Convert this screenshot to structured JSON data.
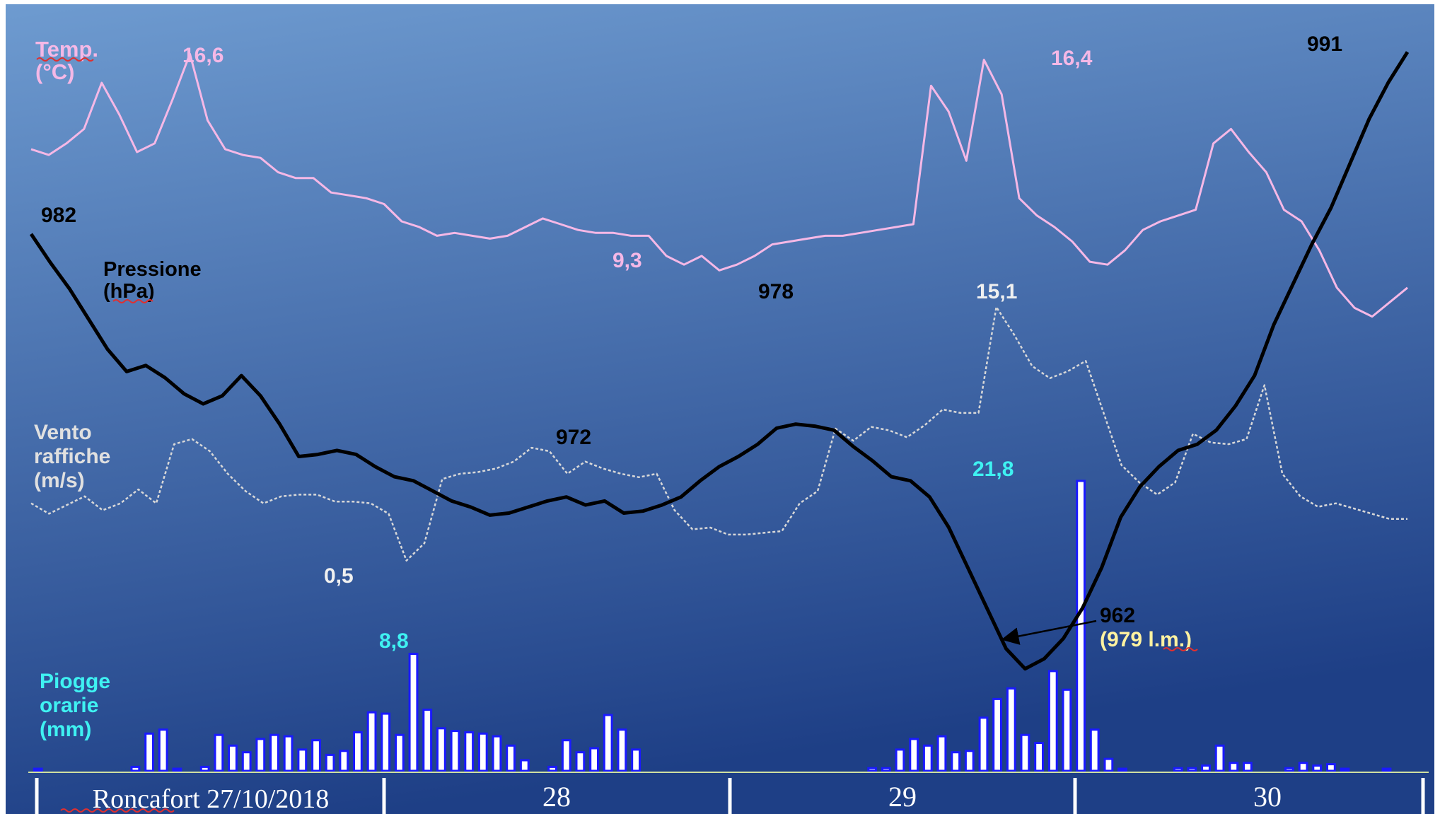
{
  "chart_data": {
    "type": "line",
    "location_date": "Roncafort 27/10/2018",
    "days": [
      "Roncafort 27/10/2018",
      "28",
      "29",
      "30"
    ],
    "colors": {
      "temperature": "#f5b8e6",
      "pressure": "#000000",
      "wind": "#d8d8d8",
      "rain": "#1a1aff",
      "rain_label": "#3ff2f2",
      "lm_label": "#fff2a0",
      "bg_top": "#6e9bd0",
      "bg_bottom": "#1e3f86"
    },
    "axis_labels": {
      "temperature": [
        "Temp.",
        "(°C)"
      ],
      "pressure": [
        "Pressione",
        "(hPa)"
      ],
      "wind": [
        "Vento",
        "raffiche",
        "(m/s)"
      ],
      "rain": [
        "Piogge",
        "orarie",
        "(mm)"
      ]
    },
    "annotations": {
      "temp_max1": "16,6",
      "temp_min": "9,3",
      "temp_max2": "16,4",
      "pres_start": "982",
      "pres_low1": "972",
      "pres_high": "978",
      "pres_min": "962",
      "pres_min_lm": "(979 l.m.)",
      "pres_end": "991",
      "wind_min": "0,5",
      "wind_max": "15,1",
      "rain_max1": "8,8",
      "rain_max2": "21,8"
    },
    "hours_total": 96,
    "series": [
      {
        "name": "Temp.",
        "unit": "°C",
        "points": [
          [
            0,
            13.3
          ],
          [
            2,
            13.1
          ],
          [
            4,
            13.5
          ],
          [
            6,
            14.0
          ],
          [
            8,
            15.6
          ],
          [
            10,
            14.5
          ],
          [
            12,
            13.2
          ],
          [
            14,
            13.5
          ],
          [
            16,
            15.0
          ],
          [
            18,
            16.6
          ],
          [
            20,
            14.3
          ],
          [
            22,
            13.3
          ],
          [
            24,
            13.1
          ],
          [
            26,
            13.0
          ],
          [
            28,
            12.5
          ],
          [
            30,
            12.3
          ],
          [
            32,
            12.3
          ],
          [
            34,
            11.8
          ],
          [
            36,
            11.7
          ],
          [
            38,
            11.6
          ],
          [
            40,
            11.4
          ],
          [
            42,
            10.8
          ],
          [
            44,
            10.6
          ],
          [
            46,
            10.3
          ],
          [
            48,
            10.4
          ],
          [
            50,
            10.3
          ],
          [
            52,
            10.2
          ],
          [
            54,
            10.3
          ],
          [
            56,
            10.6
          ],
          [
            58,
            10.9
          ],
          [
            60,
            10.7
          ],
          [
            62,
            10.5
          ],
          [
            64,
            10.4
          ],
          [
            66,
            10.4
          ],
          [
            68,
            10.3
          ],
          [
            70,
            10.3
          ],
          [
            72,
            9.6
          ],
          [
            74,
            9.3
          ],
          [
            76,
            9.6
          ],
          [
            78,
            9.1
          ],
          [
            80,
            9.3
          ],
          [
            82,
            9.6
          ],
          [
            84,
            10.0
          ],
          [
            86,
            10.1
          ],
          [
            88,
            10.2
          ],
          [
            90,
            10.3
          ],
          [
            92,
            10.3
          ],
          [
            94,
            10.4
          ],
          [
            96,
            10.5
          ],
          [
            98,
            10.6
          ],
          [
            100,
            10.7
          ],
          [
            102,
            15.5
          ],
          [
            104,
            14.6
          ],
          [
            106,
            12.9
          ],
          [
            108,
            16.4
          ],
          [
            110,
            15.2
          ],
          [
            112,
            11.6
          ],
          [
            114,
            11.0
          ],
          [
            116,
            10.6
          ],
          [
            118,
            10.1
          ],
          [
            120,
            9.4
          ],
          [
            122,
            9.3
          ],
          [
            124,
            9.8
          ],
          [
            126,
            10.5
          ],
          [
            128,
            10.8
          ],
          [
            130,
            11.0
          ],
          [
            132,
            11.2
          ],
          [
            134,
            13.5
          ],
          [
            136,
            14.0
          ],
          [
            138,
            13.2
          ],
          [
            140,
            12.5
          ],
          [
            142,
            11.2
          ],
          [
            144,
            10.8
          ],
          [
            146,
            9.8
          ],
          [
            148,
            8.5
          ],
          [
            150,
            7.8
          ],
          [
            152,
            7.5
          ],
          [
            154,
            8.0
          ],
          [
            156,
            8.5
          ]
        ]
      },
      {
        "name": "Pressione",
        "unit": "hPa",
        "points": [
          [
            0,
            982
          ],
          [
            2,
            980.6
          ],
          [
            4,
            979.3
          ],
          [
            6,
            977.8
          ],
          [
            8,
            976.3
          ],
          [
            10,
            975.2
          ],
          [
            12,
            975.5
          ],
          [
            14,
            974.9
          ],
          [
            16,
            974.1
          ],
          [
            18,
            973.6
          ],
          [
            20,
            974.0
          ],
          [
            22,
            975.0
          ],
          [
            24,
            974.0
          ],
          [
            26,
            972.6
          ],
          [
            28,
            971.0
          ],
          [
            30,
            971.1
          ],
          [
            32,
            971.3
          ],
          [
            34,
            971.1
          ],
          [
            36,
            970.5
          ],
          [
            38,
            970.0
          ],
          [
            40,
            969.8
          ],
          [
            42,
            969.3
          ],
          [
            44,
            968.8
          ],
          [
            46,
            968.5
          ],
          [
            48,
            968.1
          ],
          [
            50,
            968.2
          ],
          [
            52,
            968.5
          ],
          [
            54,
            968.8
          ],
          [
            56,
            969.0
          ],
          [
            58,
            968.6
          ],
          [
            60,
            968.8
          ],
          [
            62,
            968.2
          ],
          [
            64,
            968.3
          ],
          [
            66,
            968.6
          ],
          [
            68,
            969.0
          ],
          [
            70,
            969.8
          ],
          [
            72,
            970.5
          ],
          [
            74,
            971.0
          ],
          [
            76,
            971.6
          ],
          [
            78,
            972.4
          ],
          [
            80,
            972.6
          ],
          [
            82,
            972.5
          ],
          [
            84,
            972.3
          ],
          [
            86,
            971.5
          ],
          [
            88,
            970.8
          ],
          [
            90,
            970.0
          ],
          [
            92,
            969.8
          ],
          [
            94,
            969.0
          ],
          [
            96,
            967.5
          ],
          [
            98,
            965.5
          ],
          [
            100,
            963.5
          ],
          [
            102,
            961.5
          ],
          [
            104,
            960.5
          ],
          [
            106,
            961.0
          ],
          [
            108,
            962.0
          ],
          [
            110,
            963.5
          ],
          [
            112,
            965.5
          ],
          [
            114,
            968.0
          ],
          [
            116,
            969.5
          ],
          [
            118,
            970.5
          ],
          [
            120,
            971.3
          ],
          [
            122,
            971.6
          ],
          [
            124,
            972.3
          ],
          [
            126,
            973.5
          ],
          [
            128,
            975.0
          ],
          [
            130,
            977.5
          ],
          [
            132,
            979.5
          ],
          [
            134,
            981.5
          ],
          [
            136,
            983.3
          ],
          [
            138,
            985.5
          ],
          [
            140,
            987.7
          ],
          [
            142,
            989.5
          ],
          [
            144,
            991
          ]
        ]
      },
      {
        "name": "Vento raffiche",
        "unit": "m/s",
        "points": [
          [
            0,
            3.8
          ],
          [
            2,
            3.2
          ],
          [
            4,
            3.7
          ],
          [
            6,
            4.2
          ],
          [
            8,
            3.4
          ],
          [
            10,
            3.8
          ],
          [
            12,
            4.6
          ],
          [
            14,
            3.8
          ],
          [
            16,
            7.2
          ],
          [
            18,
            7.5
          ],
          [
            20,
            6.8
          ],
          [
            22,
            5.5
          ],
          [
            24,
            4.5
          ],
          [
            26,
            3.8
          ],
          [
            28,
            4.2
          ],
          [
            30,
            4.3
          ],
          [
            32,
            4.3
          ],
          [
            34,
            3.9
          ],
          [
            36,
            3.9
          ],
          [
            38,
            3.8
          ],
          [
            40,
            3.2
          ],
          [
            42,
            0.5
          ],
          [
            44,
            1.5
          ],
          [
            46,
            5.2
          ],
          [
            48,
            5.5
          ],
          [
            50,
            5.6
          ],
          [
            52,
            5.8
          ],
          [
            54,
            6.2
          ],
          [
            56,
            7.0
          ],
          [
            58,
            6.8
          ],
          [
            60,
            5.5
          ],
          [
            62,
            6.2
          ],
          [
            64,
            5.8
          ],
          [
            66,
            5.5
          ],
          [
            68,
            5.3
          ],
          [
            70,
            5.5
          ],
          [
            72,
            3.4
          ],
          [
            74,
            2.3
          ],
          [
            76,
            2.4
          ],
          [
            78,
            2.0
          ],
          [
            80,
            2.0
          ],
          [
            82,
            2.1
          ],
          [
            84,
            2.2
          ],
          [
            86,
            3.8
          ],
          [
            88,
            4.5
          ],
          [
            90,
            8.1
          ],
          [
            92,
            7.4
          ],
          [
            94,
            8.2
          ],
          [
            96,
            8.0
          ],
          [
            98,
            7.6
          ],
          [
            100,
            8.3
          ],
          [
            102,
            9.2
          ],
          [
            104,
            9.0
          ],
          [
            106,
            9.0
          ],
          [
            108,
            15.1
          ],
          [
            110,
            13.5
          ],
          [
            112,
            11.7
          ],
          [
            114,
            11.0
          ],
          [
            116,
            11.4
          ],
          [
            118,
            12.0
          ],
          [
            120,
            9.0
          ],
          [
            122,
            6.0
          ],
          [
            124,
            5.0
          ],
          [
            126,
            4.3
          ],
          [
            128,
            5.0
          ],
          [
            130,
            7.8
          ],
          [
            132,
            7.3
          ],
          [
            134,
            7.2
          ],
          [
            136,
            7.5
          ],
          [
            138,
            10.6
          ],
          [
            140,
            5.5
          ],
          [
            142,
            4.2
          ],
          [
            144,
            3.6
          ],
          [
            146,
            3.8
          ],
          [
            148,
            3.5
          ],
          [
            150,
            3.2
          ],
          [
            152,
            2.9
          ],
          [
            154,
            2.9
          ]
        ]
      },
      {
        "name": "Piogge orarie",
        "unit": "mm",
        "values": [
          0.1,
          0,
          0,
          0,
          0,
          0,
          0,
          0.3,
          2.8,
          3.1,
          0.1,
          0,
          0.3,
          2.7,
          1.9,
          1.4,
          2.4,
          2.7,
          2.6,
          1.6,
          2.3,
          1.2,
          1.5,
          2.9,
          4.4,
          4.3,
          2.7,
          8.8,
          4.6,
          3.2,
          3.0,
          2.9,
          2.8,
          2.6,
          1.9,
          0.8,
          0,
          0.3,
          2.3,
          1.4,
          1.7,
          4.2,
          3.1,
          1.6,
          0,
          0,
          0,
          0,
          0,
          0,
          0,
          0,
          0,
          0,
          0,
          0,
          0,
          0,
          0,
          0,
          0.2,
          0.2,
          1.6,
          2.4,
          1.9,
          2.6,
          1.4,
          1.5,
          4.0,
          5.4,
          6.2,
          2.7,
          2.1,
          7.5,
          6.1,
          21.8,
          3.1,
          0.9,
          0.1,
          0,
          0,
          0,
          0.2,
          0.2,
          0.4,
          1.9,
          0.6,
          0.6,
          0,
          0,
          0.2,
          0.6,
          0.4,
          0.5,
          0.1,
          0,
          0,
          0.1,
          0
        ]
      }
    ]
  }
}
